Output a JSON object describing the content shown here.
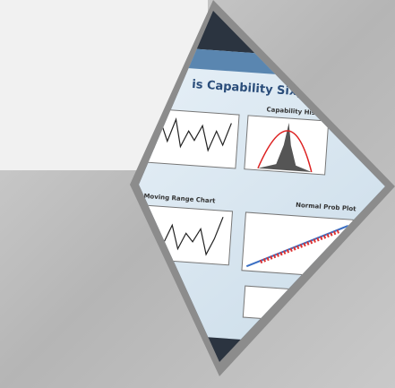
{
  "screen": {
    "title": "is Capability Sixpack",
    "panels": [
      "Capability Histogram",
      "Moving Range Chart",
      "Normal Prob Plot"
    ]
  }
}
